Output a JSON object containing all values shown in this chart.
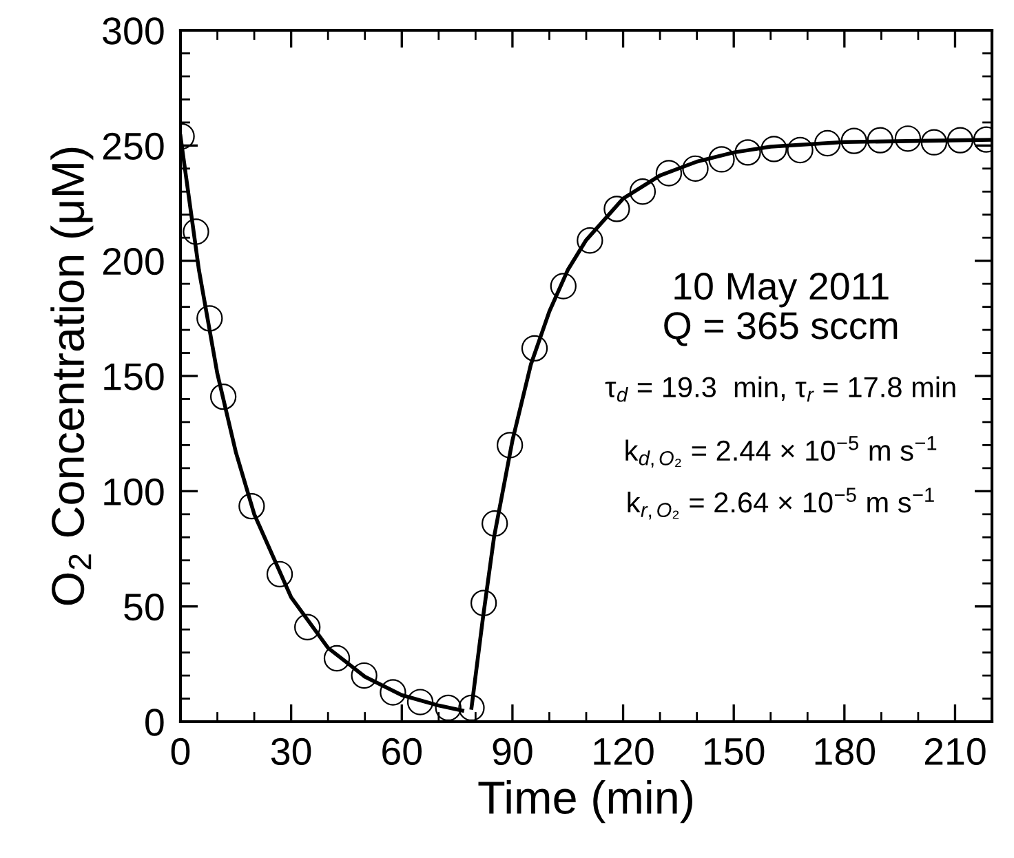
{
  "chart_data": {
    "type": "scatter",
    "xlabel": "Time (min)",
    "ylabel": "O$_{2}$ Concentration (μM)",
    "xlim": [
      0,
      220
    ],
    "ylim": [
      0,
      300
    ],
    "xticks": [
      0,
      30,
      60,
      90,
      120,
      150,
      180,
      210
    ],
    "yticks": [
      0,
      50,
      100,
      150,
      200,
      250,
      300
    ],
    "grid": false,
    "legend": false,
    "series": [
      {
        "color": "#000000",
        "marker": "circle",
        "x": [
          0.3,
          4.2,
          7.9,
          11.6,
          19.3,
          26.9,
          34.4,
          42.4,
          49.8,
          57.6,
          65,
          72.6,
          78.9,
          82.2,
          85.2,
          89.3,
          96,
          103.8,
          111,
          118.3,
          125.3,
          132.4,
          139.6,
          146.7,
          153.8,
          160.9,
          168,
          175.4,
          182.6,
          189.7,
          197.2,
          204.3,
          211.4,
          218.5
        ],
        "values": [
          254,
          212.6,
          175,
          141,
          93.5,
          64,
          41,
          27.5,
          20,
          12.7,
          8.5,
          6,
          6,
          51.5,
          86,
          120,
          162,
          189,
          208.8,
          222.5,
          230,
          238,
          240,
          244,
          247,
          248.5,
          248,
          251,
          252,
          252.3,
          253,
          251.4,
          252.3,
          252.6
        ]
      },
      {
        "type": "line",
        "color": "#000000",
        "marker": "none",
        "line_style": "solid",
        "x": [
          0,
          5,
          10,
          15,
          20,
          30,
          40,
          50,
          60,
          70,
          76.4
        ],
        "values": [
          254,
          196,
          151,
          117,
          90,
          54,
          32,
          19.5,
          11.5,
          7,
          4.8
        ]
      },
      {
        "type": "line",
        "color": "#000000",
        "marker": "none",
        "line_style": "solid",
        "x": [
          78.9,
          82,
          85,
          90,
          95,
          100,
          105,
          110,
          120,
          130,
          140,
          150,
          160,
          180,
          200,
          220
        ],
        "values": [
          6,
          45,
          80,
          122,
          155,
          178,
          196,
          209,
          227,
          237,
          243,
          247,
          249.5,
          251.5,
          252,
          252.5
        ]
      }
    ],
    "annotations": [
      "10 May 2011",
      "Q = 365 sccm",
      "τ$_{d}$ = 19.3  min, τ$_{r}$ = 17.8 min",
      "k$_{d,O₂}$ = 2.44 × 10$^{−5}$ m s$^{−1}$",
      "k$_{r,O₂}$ = 2.64 × 10$^{−5}$ m s$^{−1}$"
    ]
  }
}
